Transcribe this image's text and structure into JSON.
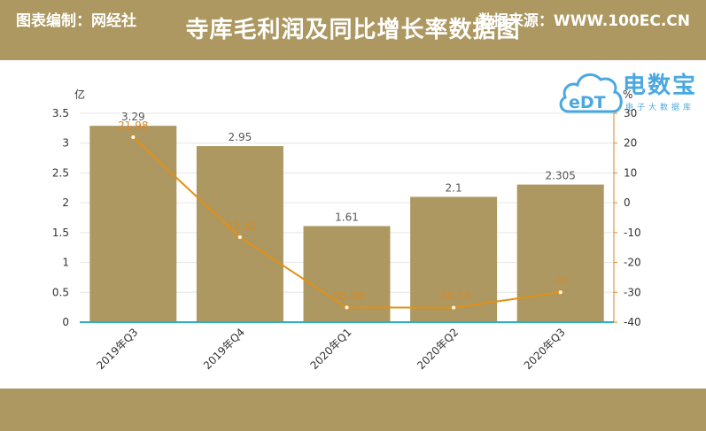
{
  "header": {
    "title": "寺库毛利润及同比增长率数据图"
  },
  "footer": {
    "left": "图表编制：网经社",
    "right": "数据来源：WWW.100EC.CN"
  },
  "logo": {
    "main": "电数宝",
    "sub": "电子大数据库",
    "cloud_text": "eDT",
    "icon": "cloud-logo-icon",
    "color": "#4aa8e0"
  },
  "colors": {
    "bar": "#ac9860",
    "line": "#e39016",
    "header": "#ac9860",
    "axis": "#2ab0c6",
    "label": "#d88a2a"
  },
  "chart_data": {
    "type": "bar",
    "categories": [
      "2019年Q3",
      "2019年Q4",
      "2020年Q1",
      "2020年Q2",
      "2020年Q3"
    ],
    "left_unit": "亿",
    "right_unit": "%",
    "ylim": [
      0,
      3.5
    ],
    "y2lim": [
      -40,
      30
    ],
    "yticks": [
      "0",
      "0.5",
      "1",
      "1.5",
      "2",
      "2.5",
      "3",
      "3.5"
    ],
    "y2ticks": [
      "-40",
      "-30",
      "-20",
      "-10",
      "0",
      "10",
      "20",
      "30"
    ],
    "series": [
      {
        "type": "bar",
        "axis": "left",
        "values": [
          3.29,
          2.95,
          1.61,
          2.1,
          2.305
        ],
        "labels": [
          "3.29",
          "2.95",
          "1.61",
          "2.1",
          "2.305"
        ]
      },
      {
        "type": "line",
        "axis": "right",
        "values": [
          21.98,
          -11.52,
          -35.08,
          -35.14,
          -30
        ],
        "labels": [
          "21.98",
          "-11.52",
          "-35.08",
          "-35.14",
          "-30"
        ]
      }
    ]
  }
}
